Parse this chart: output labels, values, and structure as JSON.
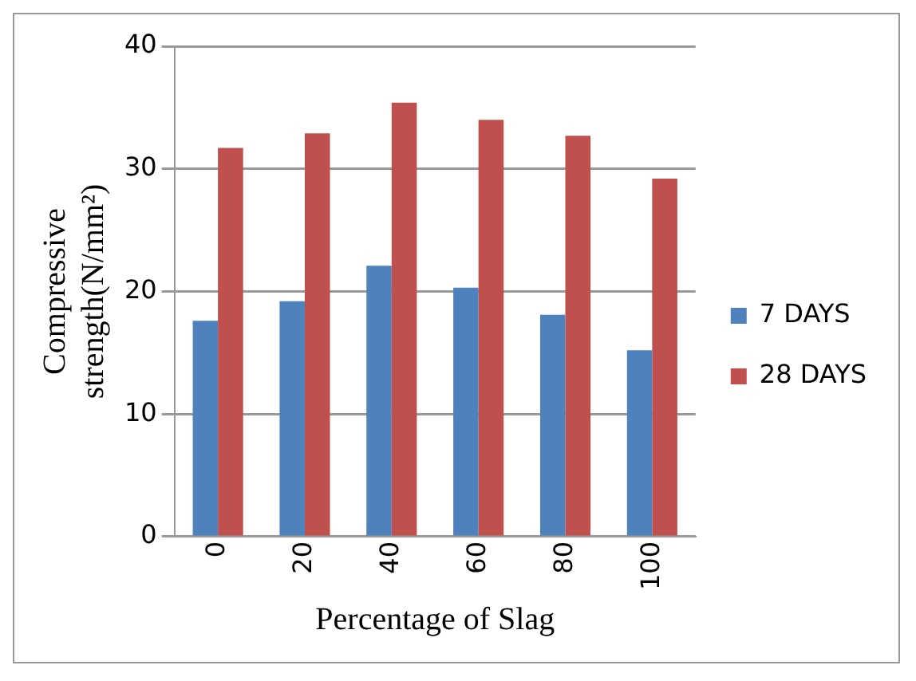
{
  "chart_data": {
    "type": "bar",
    "xlabel": "Percentage of Slag",
    "ylabel": "Compressive strength(N/mm²)",
    "categories": [
      "0",
      "20",
      "40",
      "60",
      "80",
      "100"
    ],
    "series": [
      {
        "name": "7 DAYS",
        "color": "#4f81bd",
        "values": [
          17.6,
          19.2,
          22.1,
          20.3,
          18.1,
          15.2
        ]
      },
      {
        "name": "28 DAYS",
        "color": "#c0504d",
        "values": [
          31.7,
          32.9,
          35.4,
          34.0,
          32.7,
          29.2
        ]
      }
    ],
    "ylim": [
      0,
      40
    ],
    "yticks": [
      0,
      10,
      20,
      30,
      40
    ],
    "grid": "y",
    "legend": "right"
  }
}
